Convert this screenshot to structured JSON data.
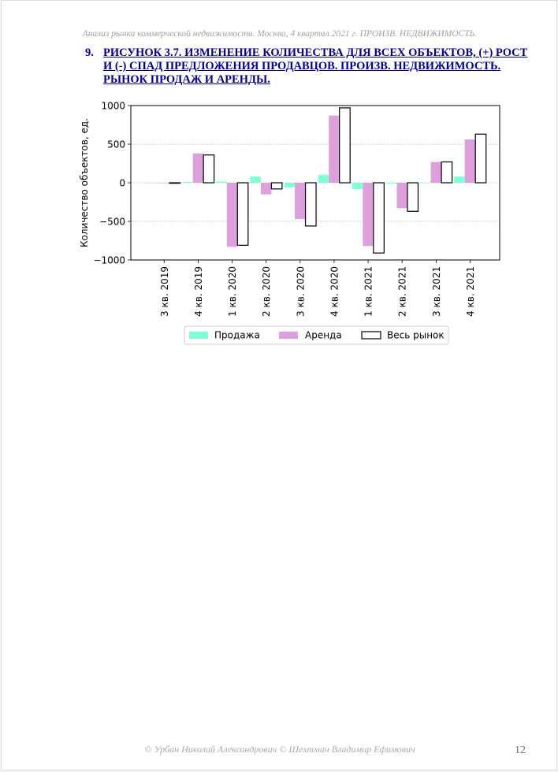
{
  "header": {
    "running_title": "Анализ рынка коммерческой недвижимости.  Москва,  4 квартал 2021 г.  ПРОИЗВ. НЕДВИЖИМОСТЬ."
  },
  "heading": {
    "number": "9.",
    "text": "РИСУНОК 3.7. ИЗМЕНЕНИЕ КОЛИЧЕСТВА ДЛЯ ВСЕХ ОБЪЕКТОВ, (+) РОСТ И (-) СПАД ПРЕДЛОЖЕНИЯ ПРОДАВЦОВ. ПРОИЗВ. НЕДВИЖИМОСТЬ. РЫНОК ПРОДАЖ И АРЕНДЫ."
  },
  "chart_data": {
    "type": "bar",
    "title": "",
    "xlabel": "",
    "ylabel": "Количество объектов, ед.",
    "ylim": [
      -1000,
      1000
    ],
    "yticks": [
      1000,
      500,
      0,
      -500,
      -1000
    ],
    "ytick_labels": [
      "1000",
      "500",
      "0",
      "−500",
      "−1000"
    ],
    "grid": true,
    "legend_placement": "bottom-center",
    "categories": [
      "3 кв. 2019",
      "4 кв. 2019",
      "1 кв. 2020",
      "2 кв. 2020",
      "3 кв. 2020",
      "4 кв. 2020",
      "1 кв. 2021",
      "2 кв. 2021",
      "3 кв. 2021",
      "4 кв. 2021"
    ],
    "series": [
      {
        "name": "Продажа",
        "color": "#7fffd4",
        "values": [
          0,
          10,
          15,
          80,
          -60,
          100,
          -80,
          -10,
          0,
          80
        ]
      },
      {
        "name": "Аренда",
        "color": "#dda0dd",
        "values": [
          0,
          380,
          -830,
          -150,
          -470,
          870,
          -820,
          -330,
          270,
          560
        ]
      },
      {
        "name": "Весь рынок",
        "color": "#ffffff",
        "values": [
          0,
          360,
          -810,
          -80,
          -560,
          970,
          -910,
          -370,
          270,
          630
        ]
      }
    ]
  },
  "footer": {
    "text": "© Урбан Николай Александрович   © Шехтман Владимир Ефимович",
    "page_number": "12"
  }
}
